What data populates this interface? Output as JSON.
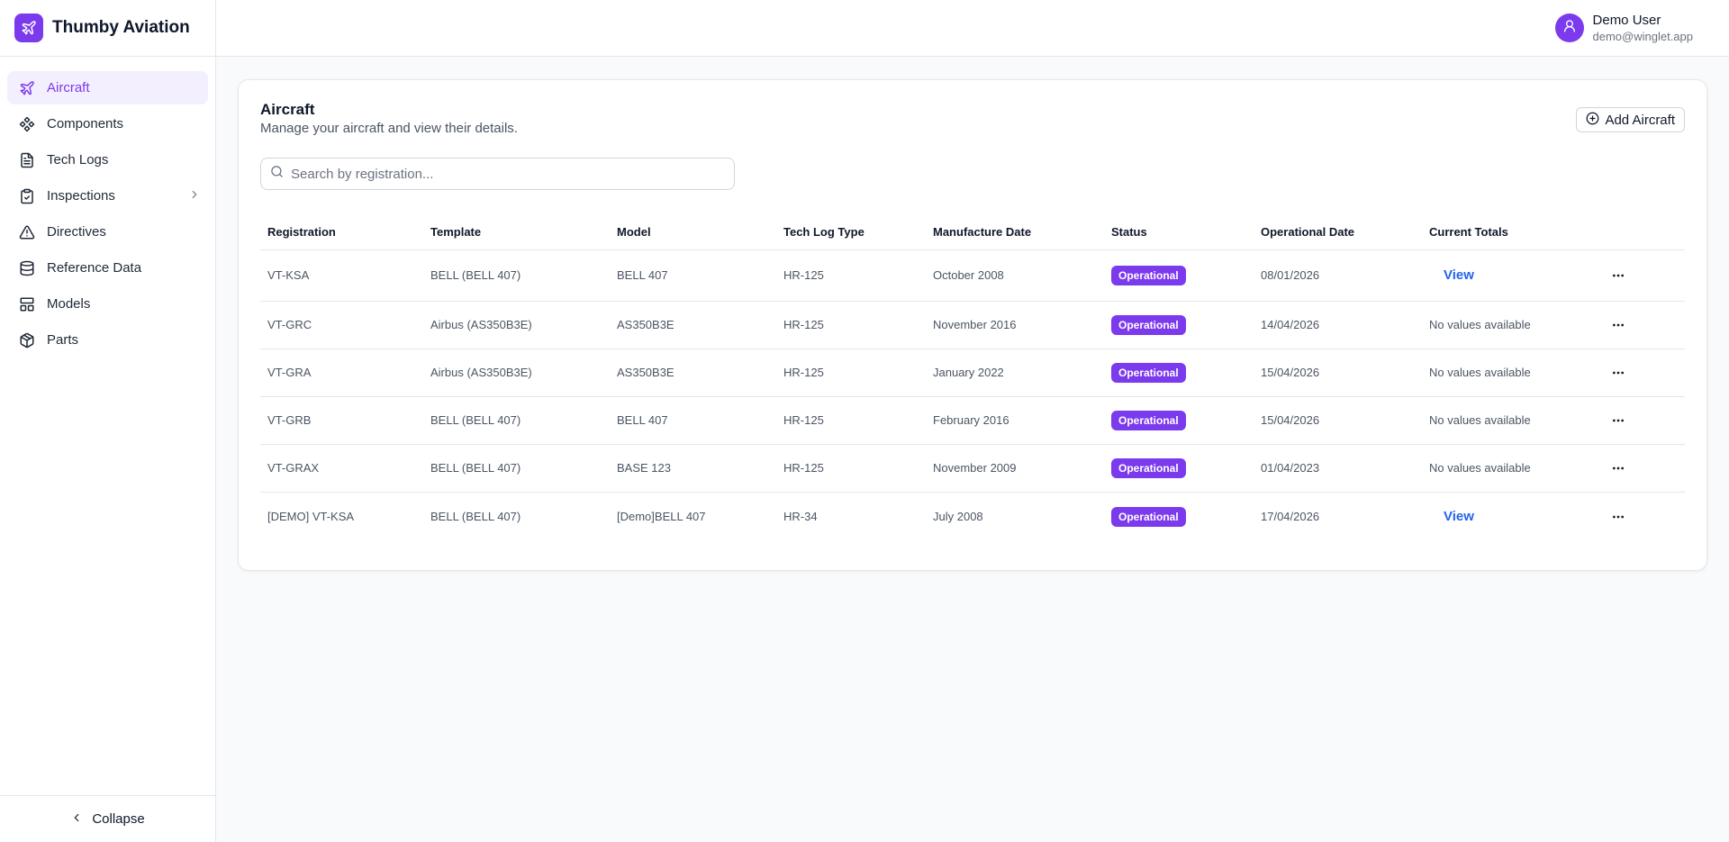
{
  "brand": {
    "name": "Thumby Aviation",
    "logo_icon": "plane-icon",
    "accent": "#7c3aed"
  },
  "sidebar": {
    "items": [
      {
        "label": "Aircraft",
        "icon": "plane-icon",
        "active": true
      },
      {
        "label": "Components",
        "icon": "components-icon"
      },
      {
        "label": "Tech Logs",
        "icon": "file-text-icon"
      },
      {
        "label": "Inspections",
        "icon": "clipboard-check-icon",
        "has_submenu": true
      },
      {
        "label": "Directives",
        "icon": "alert-triangle-icon"
      },
      {
        "label": "Reference Data",
        "icon": "database-icon"
      },
      {
        "label": "Models",
        "icon": "layout-grid-icon"
      },
      {
        "label": "Parts",
        "icon": "package-icon"
      }
    ],
    "collapse_label": "Collapse"
  },
  "user": {
    "name": "Demo User",
    "email": "demo@winglet.app"
  },
  "page": {
    "title": "Aircraft",
    "subtitle": "Manage your aircraft and view their details.",
    "add_button_label": "Add Aircraft",
    "search_placeholder": "Search by registration..."
  },
  "table": {
    "columns": [
      "Registration",
      "Template",
      "Model",
      "Tech Log Type",
      "Manufacture Date",
      "Status",
      "Operational Date",
      "Current Totals"
    ],
    "rows": [
      {
        "registration": "VT-KSA",
        "template": "BELL (BELL 407)",
        "model": "BELL 407",
        "tech_log_type": "HR-125",
        "manufacture_date": "October 2008",
        "status": "Operational",
        "operational_date": "08/01/2026",
        "current_totals": "View",
        "totals_is_link": true
      },
      {
        "registration": "VT-GRC",
        "template": "Airbus (AS350B3E)",
        "model": "AS350B3E",
        "tech_log_type": "HR-125",
        "manufacture_date": "November 2016",
        "status": "Operational",
        "operational_date": "14/04/2026",
        "current_totals": "No values available",
        "totals_is_link": false
      },
      {
        "registration": "VT-GRA",
        "template": "Airbus (AS350B3E)",
        "model": "AS350B3E",
        "tech_log_type": "HR-125",
        "manufacture_date": "January 2022",
        "status": "Operational",
        "operational_date": "15/04/2026",
        "current_totals": "No values available",
        "totals_is_link": false
      },
      {
        "registration": "VT-GRB",
        "template": "BELL (BELL 407)",
        "model": "BELL 407",
        "tech_log_type": "HR-125",
        "manufacture_date": "February 2016",
        "status": "Operational",
        "operational_date": "15/04/2026",
        "current_totals": "No values available",
        "totals_is_link": false
      },
      {
        "registration": "VT-GRAX",
        "template": "BELL (BELL 407)",
        "model": "BASE 123",
        "tech_log_type": "HR-125",
        "manufacture_date": "November 2009",
        "status": "Operational",
        "operational_date": "01/04/2023",
        "current_totals": "No values available",
        "totals_is_link": false
      },
      {
        "registration": "[DEMO] VT-KSA",
        "template": "BELL (BELL 407)",
        "model": "[Demo]BELL 407",
        "tech_log_type": "HR-34",
        "manufacture_date": "July 2008",
        "status": "Operational",
        "operational_date": "17/04/2026",
        "current_totals": "View",
        "totals_is_link": true
      }
    ]
  },
  "colors": {
    "accent": "#7c3aed",
    "link": "#2563eb",
    "active_bg": "#f3effe"
  }
}
